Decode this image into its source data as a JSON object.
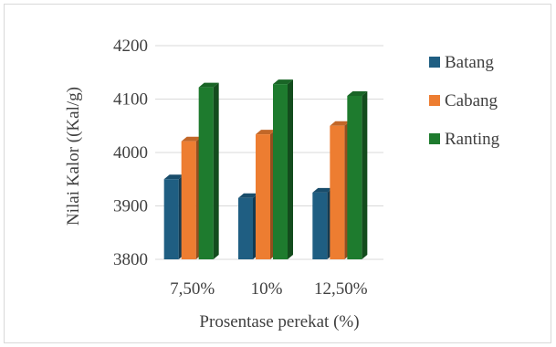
{
  "chart_data": {
    "type": "bar",
    "title": "",
    "xlabel": "Prosentase perekat (%)",
    "ylabel": "Nilai Kalor ((Kal/g)",
    "categories": [
      "7,50%",
      "10%",
      "12,50%"
    ],
    "series": [
      {
        "name": "Batang",
        "values": [
          3950,
          3915,
          3925
        ]
      },
      {
        "name": "Cabang",
        "values": [
          4021,
          4034,
          4050
        ]
      },
      {
        "name": "Ranting",
        "values": [
          4122,
          4128,
          4106
        ]
      }
    ],
    "ylim": [
      3800,
      4200
    ],
    "yticks": [
      3800,
      3900,
      4000,
      4100,
      4200
    ],
    "ytick_labels": [
      "3800",
      "3900",
      "4000",
      "4100",
      "4200"
    ],
    "grid": true,
    "legend_position": "right",
    "style": "3d-column",
    "colors": {
      "Batang": "#1f5e82",
      "Cabang": "#ed7d31",
      "Ranting": "#1e7b2e",
      "grid": "#d9d9d9",
      "text": "#404040"
    }
  }
}
